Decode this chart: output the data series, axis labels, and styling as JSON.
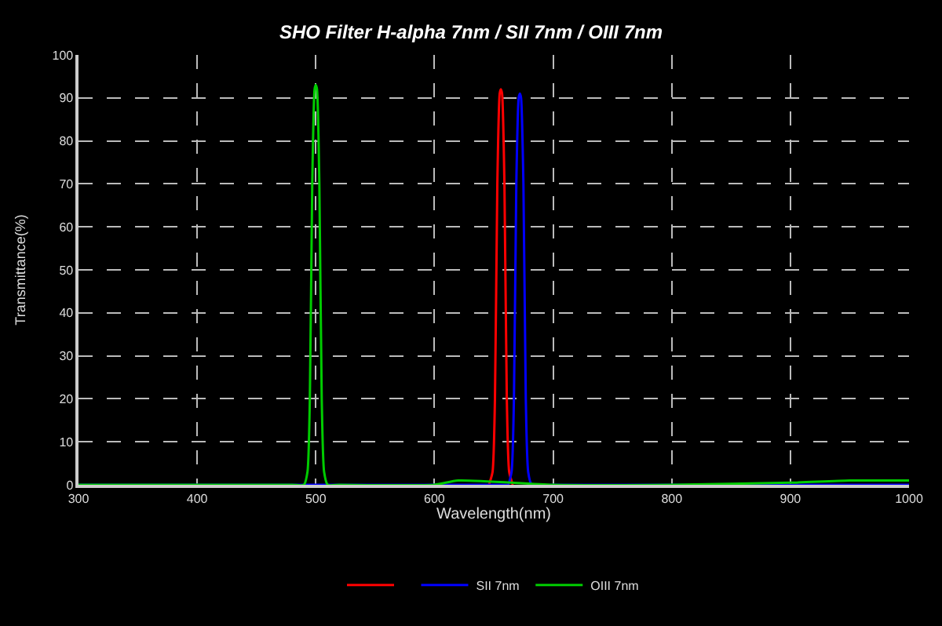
{
  "chart_data": {
    "type": "line",
    "title": "SHO Filter H-alpha 7nm / SII 7nm / OIII 7nm",
    "xlabel": "Wavelength(nm)",
    "ylabel": "Transmittance(%)",
    "xlim": [
      300,
      1000
    ],
    "xticks": [
      300,
      400,
      500,
      600,
      700,
      800,
      900,
      1000
    ],
    "ylim": [
      0,
      100
    ],
    "yticks": [
      0,
      10,
      20,
      30,
      40,
      50,
      60,
      70,
      80,
      90,
      100
    ],
    "grid": true,
    "legend": "bottom",
    "line_style": "solid",
    "marker": "none",
    "series": [
      {
        "color": "#ff0000",
        "x": [
          646,
          649,
          651,
          653,
          655,
          656,
          657,
          659,
          661,
          663,
          666
        ],
        "values": [
          0,
          3,
          20,
          70,
          91,
          92,
          91,
          70,
          20,
          3,
          0
        ]
      },
      {
        "name": "SII 7nm",
        "color": "#0000ff",
        "x": [
          300,
          500,
          600,
          660,
          662,
          665,
          667,
          669,
          671,
          672,
          673,
          675,
          677,
          679,
          682,
          700,
          800,
          1000
        ],
        "values": [
          0,
          0,
          0,
          0,
          0,
          3,
          20,
          70,
          90,
          91,
          90,
          70,
          20,
          3,
          0,
          0,
          0,
          0
        ]
      },
      {
        "name": "OIII 7nm",
        "color": "#00cc00",
        "x": [
          300,
          480,
          490,
          493,
          495,
          497,
          499,
          500,
          501,
          503,
          505,
          507,
          510,
          520,
          600,
          620,
          700,
          800,
          900,
          950,
          1000
        ],
        "values": [
          0,
          0,
          0,
          3,
          20,
          70,
          92,
          93,
          92,
          70,
          20,
          3,
          0,
          0,
          0,
          1,
          0,
          0,
          0.5,
          1,
          1
        ]
      }
    ]
  }
}
